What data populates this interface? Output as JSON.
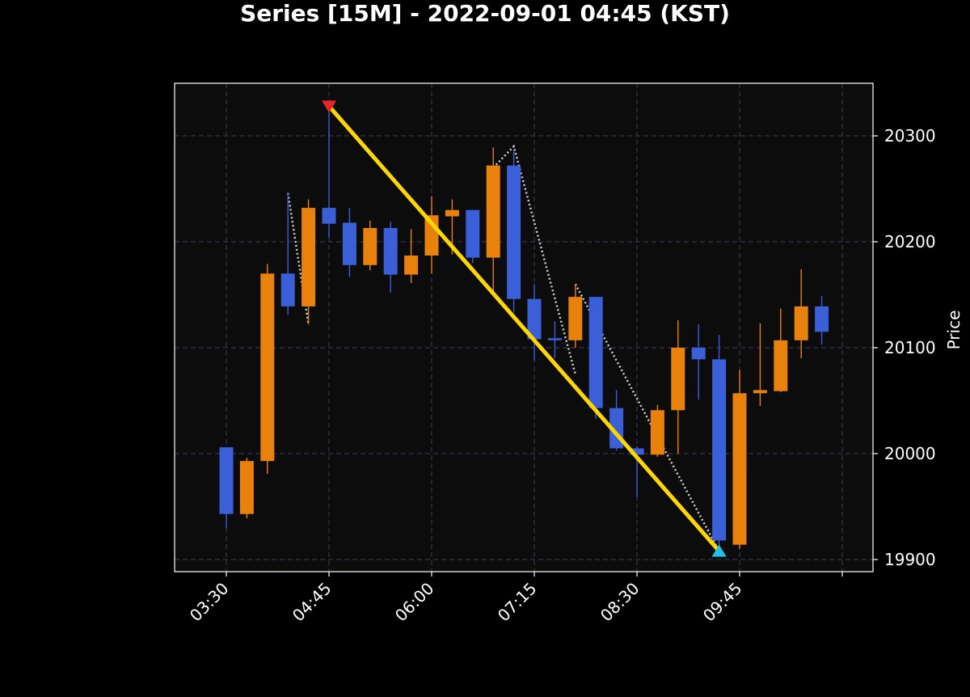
{
  "chart_data": {
    "type": "candlestick",
    "title": "Series [15M] - 2022-09-01 04:45 (KST)",
    "xlabel": "",
    "ylabel": "Price",
    "x_ticks": [
      "03:30",
      "04:45",
      "06:00",
      "07:15",
      "08:30",
      "09:45"
    ],
    "y_ticks": [
      19900,
      20000,
      20100,
      20200,
      20300
    ],
    "ylim": [
      19888,
      20335
    ],
    "grid": true,
    "colors": {
      "up": "#e8820c",
      "down": "#3b5fd6",
      "background": "#0c0c0c",
      "frame": "#ffffff",
      "trend": "#ffd700",
      "entry_marker": "#e8242c",
      "exit_marker": "#22c2e6",
      "dotted": "#d0d0d0"
    },
    "candles": [
      {
        "time": "03:30",
        "open": 20006,
        "high": 20006,
        "low": 19930,
        "close": 19943
      },
      {
        "time": "03:45",
        "open": 19943,
        "high": 19996,
        "low": 19939,
        "close": 19993
      },
      {
        "time": "04:00",
        "open": 19993,
        "high": 20179,
        "low": 19981,
        "close": 20170
      },
      {
        "time": "04:15",
        "open": 20170,
        "high": 20246,
        "low": 20131,
        "close": 20139
      },
      {
        "time": "04:30",
        "open": 20139,
        "high": 20240,
        "low": 20122,
        "close": 20232
      },
      {
        "time": "04:45",
        "open": 20232,
        "high": 20328,
        "low": 20204,
        "close": 20217
      },
      {
        "time": "05:00",
        "open": 20218,
        "high": 20232,
        "low": 20167,
        "close": 20178
      },
      {
        "time": "05:15",
        "open": 20178,
        "high": 20220,
        "low": 20173,
        "close": 20213
      },
      {
        "time": "05:30",
        "open": 20213,
        "high": 20219,
        "low": 20152,
        "close": 20169
      },
      {
        "time": "05:45",
        "open": 20169,
        "high": 20212,
        "low": 20161,
        "close": 20187
      },
      {
        "time": "06:00",
        "open": 20187,
        "high": 20243,
        "low": 20170,
        "close": 20225
      },
      {
        "time": "06:15",
        "open": 20224,
        "high": 20240,
        "low": 20188,
        "close": 20230
      },
      {
        "time": "06:30",
        "open": 20230,
        "high": 20230,
        "low": 20180,
        "close": 20185
      },
      {
        "time": "06:45",
        "open": 20185,
        "high": 20289,
        "low": 20152,
        "close": 20272
      },
      {
        "time": "07:00",
        "open": 20272,
        "high": 20286,
        "low": 20133,
        "close": 20146
      },
      {
        "time": "07:15",
        "open": 20146,
        "high": 20160,
        "low": 20088,
        "close": 20108
      },
      {
        "time": "07:30",
        "open": 20109,
        "high": 20125,
        "low": 20090,
        "close": 20107
      },
      {
        "time": "07:45",
        "open": 20107,
        "high": 20160,
        "low": 20100,
        "close": 20148
      },
      {
        "time": "08:00",
        "open": 20148,
        "high": 20148,
        "low": 20033,
        "close": 20043
      },
      {
        "time": "08:15",
        "open": 20043,
        "high": 20060,
        "low": 20003,
        "close": 20005
      },
      {
        "time": "08:30",
        "open": 20005,
        "high": 20007,
        "low": 19959,
        "close": 19999
      },
      {
        "time": "08:45",
        "open": 19999,
        "high": 20046,
        "low": 19997,
        "close": 20041
      },
      {
        "time": "09:00",
        "open": 20041,
        "high": 20126,
        "low": 20000,
        "close": 20100
      },
      {
        "time": "09:15",
        "open": 20100,
        "high": 20122,
        "low": 20051,
        "close": 20089
      },
      {
        "time": "09:30",
        "open": 20089,
        "high": 20112,
        "low": 19908,
        "close": 19918
      },
      {
        "time": "09:45",
        "open": 19914,
        "high": 20079,
        "low": 19910,
        "close": 20057
      },
      {
        "time": "10:00",
        "open": 20057,
        "high": 20123,
        "low": 20045,
        "close": 20060
      },
      {
        "time": "10:15",
        "open": 20059,
        "high": 20137,
        "low": 20058,
        "close": 20107
      },
      {
        "time": "10:30",
        "open": 20107,
        "high": 20174,
        "low": 20090,
        "close": 20139
      },
      {
        "time": "10:45",
        "open": 20139,
        "high": 20149,
        "low": 20103,
        "close": 20115
      }
    ],
    "trend_line": [
      {
        "time": "04:45",
        "price": 20328
      },
      {
        "time": "09:30",
        "price": 19908
      }
    ],
    "entry_marker": {
      "time": "04:45",
      "price": 20328
    },
    "exit_marker": {
      "time": "09:30",
      "price": 19908
    },
    "dotted_lines": [
      [
        {
          "time": "04:15",
          "price": 20246
        },
        {
          "time": "04:30",
          "price": 20122
        }
      ],
      [
        {
          "time": "06:45",
          "price": 20270
        },
        {
          "time": "07:00",
          "price": 20290
        },
        {
          "time": "07:45",
          "price": 20075
        }
      ],
      [
        {
          "time": "07:45",
          "price": 20160
        },
        {
          "time": "09:30",
          "price": 19908
        }
      ]
    ]
  }
}
